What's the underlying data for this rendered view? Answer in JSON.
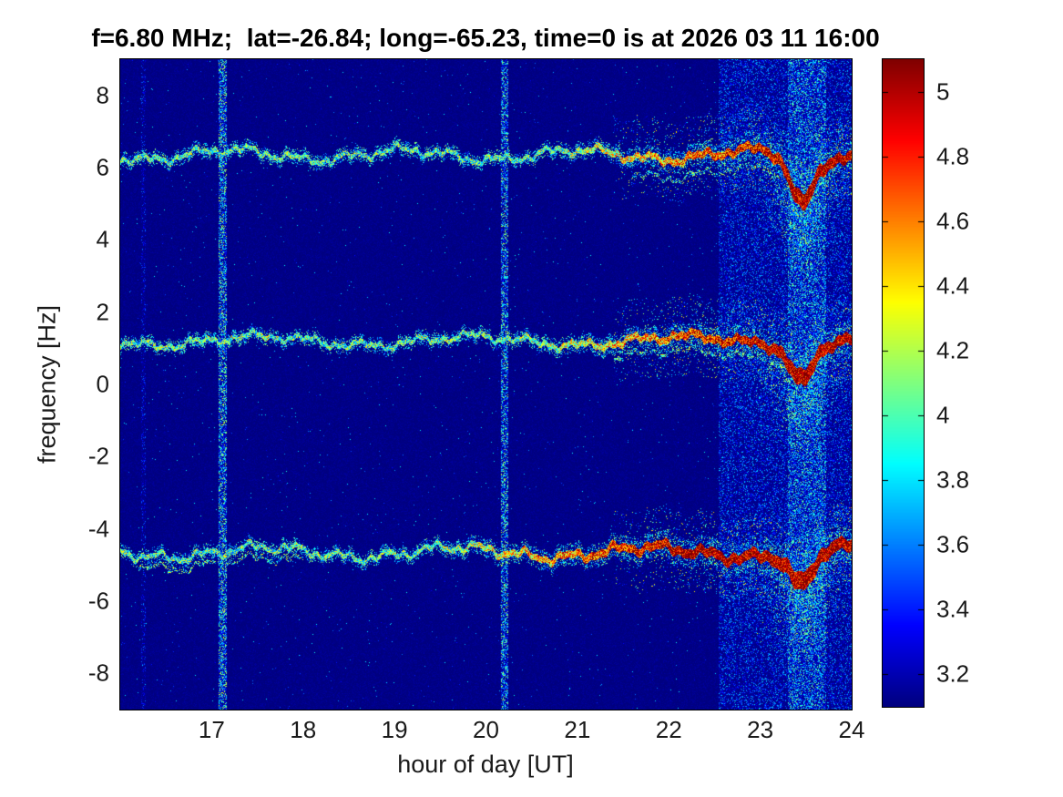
{
  "chart_data": {
    "type": "heatmap",
    "subtype": "doppler-spectrogram",
    "title": "f=6.80 MHz;  lat=-26.84; long=-65.23, time=0 is at 2026 03 11 16:00",
    "xlabel": "hour of day [UT]",
    "ylabel": "frequency [Hz]",
    "xlim": [
      16,
      24
    ],
    "ylim": [
      -9,
      9
    ],
    "x_ticks": [
      17,
      18,
      19,
      20,
      21,
      22,
      23,
      24
    ],
    "y_ticks": [
      8,
      6,
      4,
      2,
      0,
      -2,
      -4,
      -6,
      -8
    ],
    "grid": false,
    "colorbar": {
      "position": "right",
      "colormap": "jet",
      "min": 3.1,
      "max": 5.1,
      "ticks": [
        5,
        4.8,
        4.6,
        4.4,
        4.2,
        4,
        3.8,
        3.6,
        3.4,
        3.2
      ]
    },
    "background_value": 3.13,
    "traces": [
      {
        "name": "upper-doppler-trace",
        "base_hz": 6.35,
        "dip_depth_hz": 1.35,
        "ramp_start_hour": 20.6,
        "wiggle": {
          "amps": [
            0.14,
            0.09,
            0.05,
            0.04
          ],
          "periods_h": [
            1.9,
            0.55,
            0.2,
            0.11
          ],
          "phases": [
            1.2,
            4.0,
            0.7,
            2.0
          ]
        },
        "sub_line": {
          "offset_hz": -0.5,
          "start_hour": 21.6,
          "end_hour": 23.2
        }
      },
      {
        "name": "middle-doppler-trace",
        "base_hz": 1.2,
        "dip_depth_hz": 1.0,
        "ramp_start_hour": 20.3,
        "wiggle": {
          "amps": [
            0.13,
            0.08,
            0.05,
            0.04
          ],
          "periods_h": [
            2.3,
            0.6,
            0.23,
            0.1
          ],
          "phases": [
            3.9,
            1.1,
            2.3,
            5.1
          ]
        },
        "sub_line": {
          "offset_hz": -0.4,
          "start_hour": 21.4,
          "end_hour": 23.3
        }
      },
      {
        "name": "lower-doppler-trace",
        "base_hz": -4.65,
        "dip_depth_hz": 0.95,
        "ramp_start_hour": 19.3,
        "wiggle": {
          "amps": [
            0.15,
            0.1,
            0.05,
            0.04
          ],
          "periods_h": [
            2.1,
            0.5,
            0.19,
            0.12
          ],
          "phases": [
            5.5,
            2.6,
            4.4,
            0.3
          ]
        },
        "sub_line": {
          "offset_hz": -0.3,
          "start_hour": 16.2,
          "end_hour": 18.0
        }
      }
    ],
    "doppler_dip": {
      "center_hour": 23.45,
      "sigma_hours": 0.17
    },
    "vertical_stripes": [
      {
        "hour": 16.25,
        "width_h": 0.05,
        "density": 0.22,
        "v_min": 3.2,
        "v_max": 3.6
      },
      {
        "hour": 17.12,
        "width_h": 0.09,
        "density": 0.6,
        "v_min": 3.3,
        "v_max": 4.35
      },
      {
        "hour": 20.2,
        "width_h": 0.08,
        "density": 0.55,
        "v_min": 3.3,
        "v_max": 4.3
      }
    ],
    "noise_band": {
      "start_hour": 22.55,
      "end_hour": 24.0,
      "density": 0.45,
      "v_min": 3.12,
      "v_max": 3.8,
      "core_start_hour": 23.3,
      "core_end_hour": 23.72,
      "core_density": 0.8,
      "core_v_max": 4.15
    },
    "colors": {
      "background": "#ffffff",
      "deep_blue": "#00009e",
      "dark_red": "#800000",
      "tick_text": "#1a1a1a"
    }
  }
}
